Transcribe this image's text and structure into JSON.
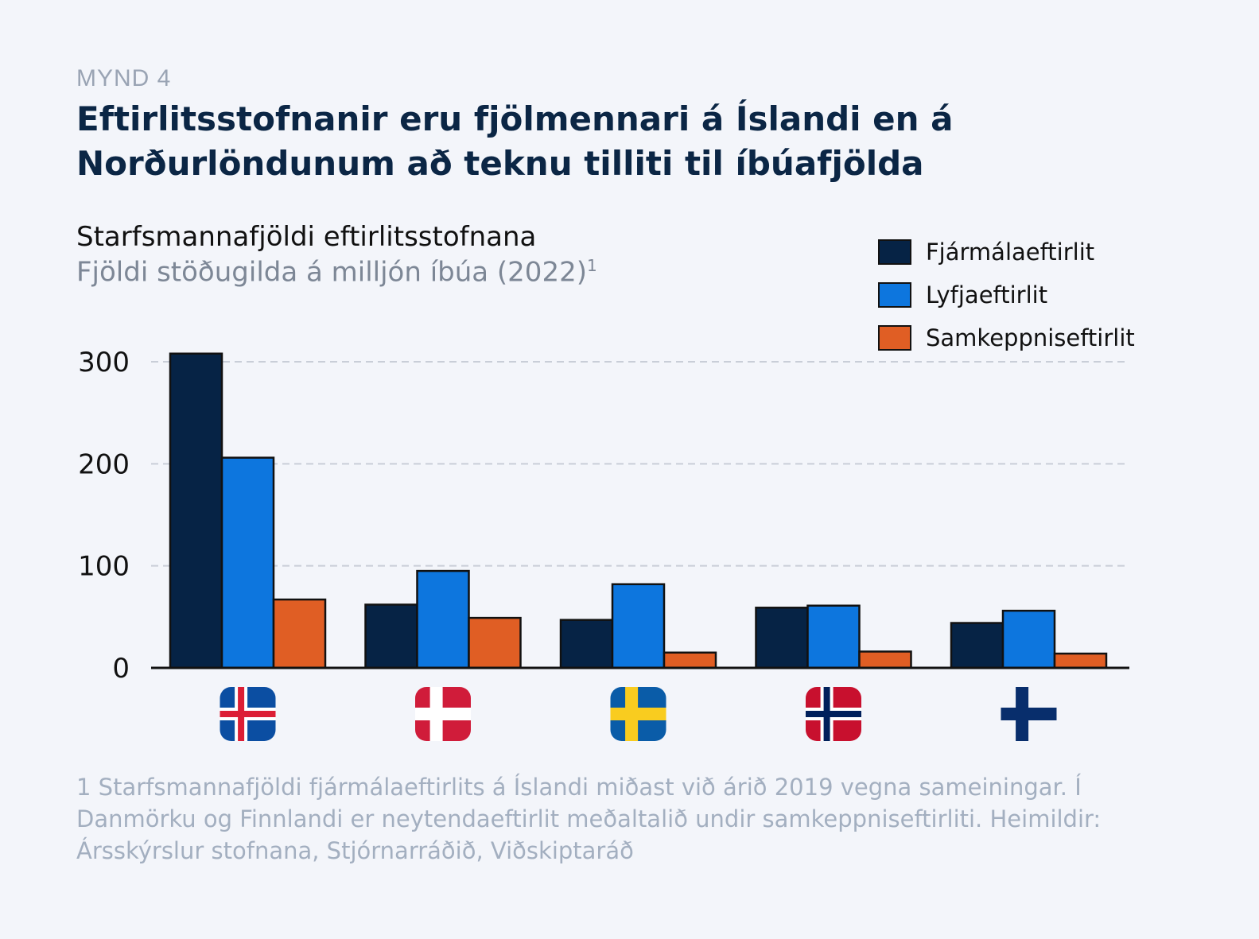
{
  "header": {
    "kicker": "MYND 4",
    "title": "Eftirlitsstofnanir eru fjölmennari á Íslandi en á Norðurlöndunum að teknu tilliti til íbúafjölda"
  },
  "chart_data": {
    "type": "bar",
    "title": "Starfsmannafjöldi eftirlitsstofnana",
    "subtitle": "Fjöldi stöðugilda á milljón íbúa (2022)",
    "subtitle_note": "1",
    "categories": [
      "Ísland",
      "Danmörk",
      "Svíþjóð",
      "Noregur",
      "Finnland"
    ],
    "category_display": "flag-icons",
    "series": [
      {
        "name": "Fjármálaeftirlit",
        "color": "#062345",
        "values": [
          308,
          62,
          47,
          59,
          44
        ]
      },
      {
        "name": "Lyfjaeftirlit",
        "color": "#0d76de",
        "values": [
          206,
          95,
          82,
          61,
          56
        ]
      },
      {
        "name": "Samkeppniseftirlit",
        "color": "#e05e24",
        "values": [
          67,
          49,
          15,
          16,
          14
        ]
      }
    ],
    "ylim": [
      0,
      300
    ],
    "yticks": [
      0,
      100,
      200,
      300
    ],
    "grid": true,
    "legend_position": "top-right"
  },
  "flags": [
    {
      "icon": "iceland-flag-icon",
      "field": "#0b4ea2",
      "cross": "#ffffff",
      "inner": "#dc1e35"
    },
    {
      "icon": "denmark-flag-icon",
      "field": "#d01c3a",
      "cross": "#ffffff",
      "inner": null
    },
    {
      "icon": "sweden-flag-icon",
      "field": "#0a5ca8",
      "cross": "#f9cc1f",
      "inner": null
    },
    {
      "icon": "norway-flag-icon",
      "field": "#c8102e",
      "cross": "#ffffff",
      "inner": "#00205b"
    },
    {
      "icon": "finland-flag-icon",
      "field": "#f3f5fa",
      "cross": "#082e6c",
      "inner": null
    }
  ],
  "footnote": "1 Starfsmannafjöldi fjármálaeftirlits á Íslandi miðast við árið 2019 vegna sameiningar. Í Danmörku og Finnlandi er neytendaeftirlit meðaltalið undir samkeppniseftirliti. Heimildir: Ársskýrslur stofnana, Stjórnarráðið, Viðskiptaráð"
}
